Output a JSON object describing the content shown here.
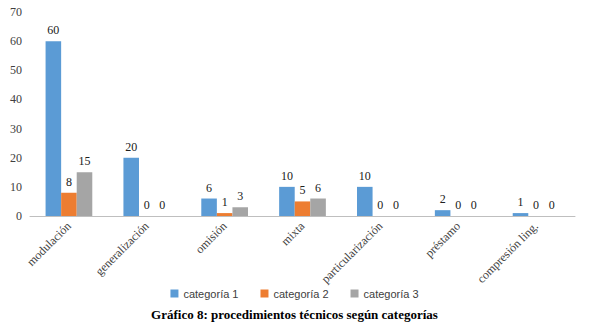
{
  "chart_data": {
    "type": "bar",
    "title": "Gráfico 8: procedimientos técnicos según categorías",
    "categories": [
      "modulación",
      "generalización",
      "omisión",
      "mixta",
      "particularización",
      "préstamo",
      "compresión ling."
    ],
    "series": [
      {
        "name": "categoría 1",
        "color": "#5b9bd5",
        "values": [
          60,
          20,
          6,
          10,
          10,
          2,
          1
        ]
      },
      {
        "name": "categoría 2",
        "color": "#ed7d31",
        "values": [
          8,
          0,
          1,
          5,
          0,
          0,
          0
        ]
      },
      {
        "name": "categoría 3",
        "color": "#a5a5a5",
        "values": [
          15,
          0,
          3,
          6,
          0,
          0,
          0
        ]
      }
    ],
    "ylim": [
      0,
      70
    ],
    "yticks": [
      0,
      10,
      20,
      30,
      40,
      50,
      60,
      70
    ],
    "grid": false,
    "legend": "bottom",
    "data_labels": true
  }
}
